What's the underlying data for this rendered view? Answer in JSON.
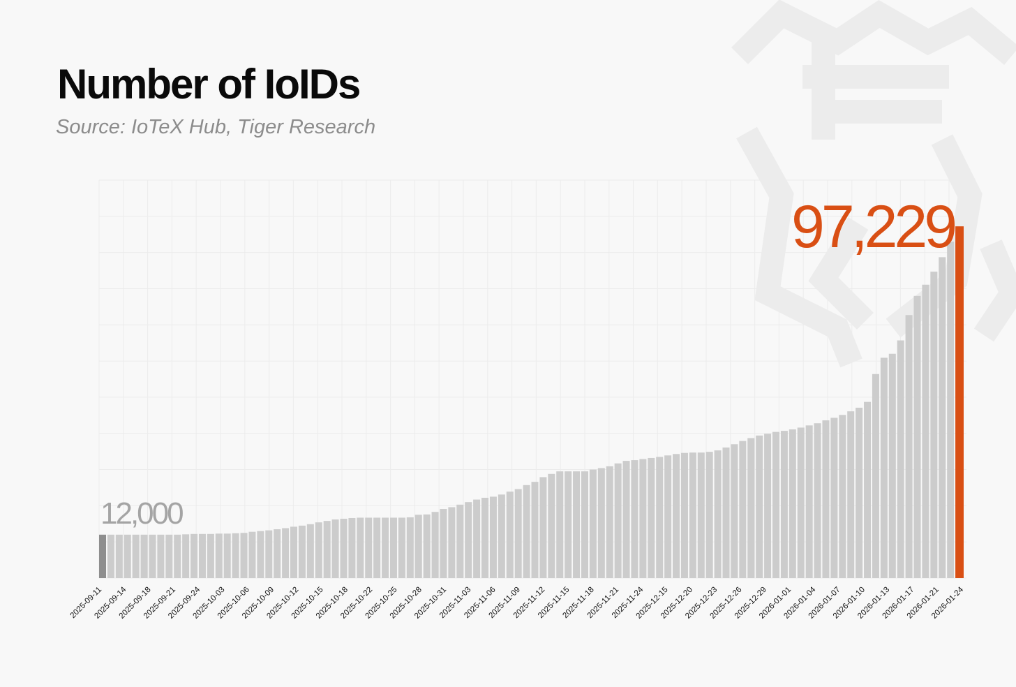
{
  "title": "Number of IoIDs",
  "subtitle": "Source: IoTeX Hub, Tiger Research",
  "colors": {
    "bar": "#cccccc",
    "first_bar": "#8e8e8e",
    "last_bar": "#d94f14",
    "grid": "#ececec"
  },
  "chart_data": {
    "type": "bar",
    "title": "Number of IoIDs",
    "xlabel": "",
    "ylabel": "",
    "ylim": [
      0,
      110000
    ],
    "grid": true,
    "legend": "none",
    "tick_labels": [
      "2025-09-11",
      "2025-09-14",
      "2025-09-18",
      "2025-09-21",
      "2025-09-24",
      "2025-10-03",
      "2025-10-06",
      "2025-10-09",
      "2025-10-12",
      "2025-10-15",
      "2025-10-18",
      "2025-10-22",
      "2025-10-25",
      "2025-10-28",
      "2025-10-31",
      "2025-11-03",
      "2025-11-06",
      "2025-11-09",
      "2025-11-12",
      "2025-11-15",
      "2025-11-18",
      "2025-11-21",
      "2025-11-24",
      "2025-12-15",
      "2025-12-20",
      "2025-12-23",
      "2025-12-26",
      "2025-12-29",
      "2026-01-01",
      "2026-01-04",
      "2026-01-07",
      "2026-01-10",
      "2026-01-13",
      "2026-01-17",
      "2026-01-21",
      "2026-01-24"
    ],
    "values": [
      12000,
      12000,
      12000,
      12000,
      12000,
      12000,
      12000,
      12000,
      12000,
      12000,
      12100,
      12200,
      12200,
      12200,
      12300,
      12300,
      12400,
      12500,
      12800,
      13000,
      13200,
      13500,
      13800,
      14200,
      14500,
      14900,
      15400,
      15800,
      16200,
      16400,
      16600,
      16700,
      16700,
      16700,
      16700,
      16700,
      16700,
      16800,
      17500,
      17600,
      18300,
      19100,
      19600,
      20300,
      21000,
      21700,
      22200,
      22500,
      23100,
      23900,
      24600,
      25700,
      26600,
      27900,
      28800,
      29500,
      29500,
      29500,
      29500,
      30000,
      30400,
      30900,
      31700,
      32400,
      32600,
      32900,
      33200,
      33500,
      33900,
      34300,
      34600,
      34700,
      34700,
      34900,
      35300,
      36100,
      37000,
      37900,
      38700,
      39400,
      39900,
      40400,
      40700,
      41100,
      41600,
      42200,
      42800,
      43600,
      44300,
      45100,
      46100,
      47100,
      48700,
      56400,
      60900,
      62000,
      65700,
      72700,
      78000,
      81100,
      84700,
      88700,
      93000,
      97229
    ],
    "first_label": "12,000",
    "last_label": "97,229"
  }
}
